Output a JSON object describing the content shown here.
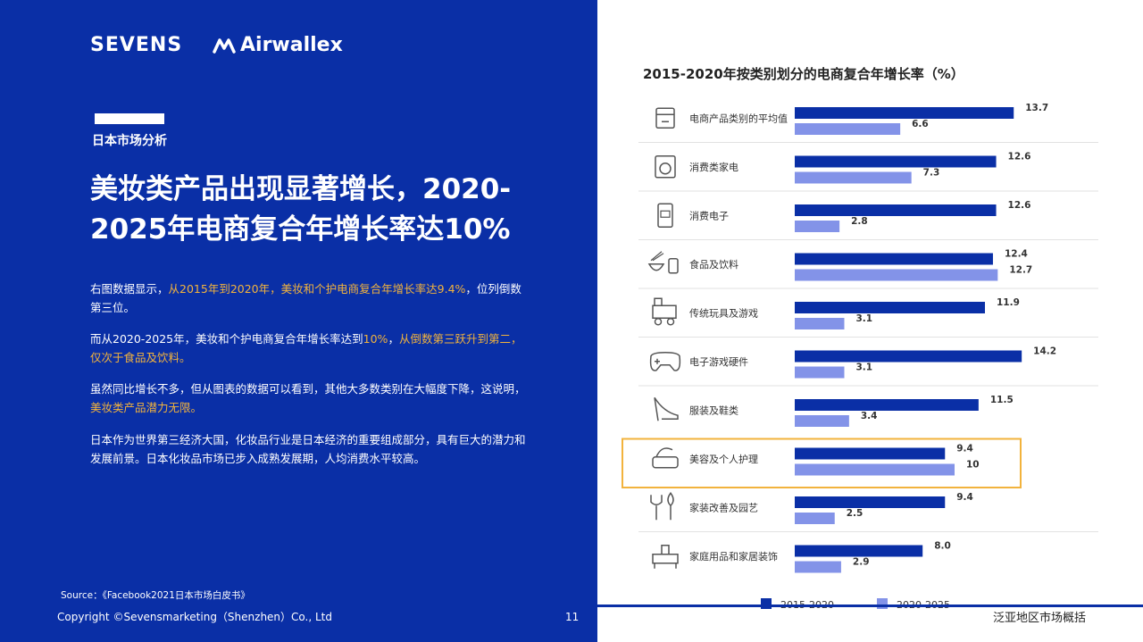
{
  "logos": {
    "brand1": "SEVENS",
    "brand2": "Airwallex"
  },
  "left": {
    "section": "日本市场分析",
    "headline_1": "美妆类产品出现显著增长，2020-",
    "headline_2": "2025年电商复合年增长率达10%",
    "p1_a": "右图数据显示，",
    "p1_b": "从2015年到2020年，美妆和个护电商复合年增长率达9.4%",
    "p1_c": "，位列倒数第三位。",
    "p2_a": "而从2020-2025年，美妆和个护电商复合年增长率达到",
    "p2_b": "10%",
    "p2_c": "，",
    "p2_d": "从倒数第三跃升到第二，仅次于食品及饮料。",
    "p3_a": "虽然同比增长不多，但从图表的数据可以看到，其他大多数类别在大幅度下降，这说明，",
    "p3_b": "美妆类产品潜力无限。",
    "p4": "日本作为世界第三经济大国，化妆品行业是日本经济的重要组成部分，具有巨大的潜力和发展前景。日本化妆品市场已步入成熟发展期，人均消费水平较高。",
    "source": "Source：《Facebook2021日本市场白皮书》",
    "copyright": "Copyright ©Sevensmarketing（Shenzhen）Co., Ltd",
    "page_number": "11"
  },
  "footer_right": "泛亚地区市场概括",
  "colors": {
    "dark_blue": "#0a2fa6",
    "light_blue": "#8393e8",
    "highlight": "#f2b33d"
  },
  "chart_data": {
    "type": "bar",
    "orientation": "horizontal",
    "title": "2015-2020年按类别划分的电商复合年增长率（%）",
    "categories": [
      "电商产品类别的平均值",
      "消费类家电",
      "消费电子",
      "食品及饮料",
      "传统玩具及游戏",
      "电子游戏硬件",
      "服装及鞋类",
      "美容及个人护理",
      "家装改善及园艺",
      "家庭用品和家居装饰"
    ],
    "icons": [
      "shop-icon",
      "washing-machine-icon",
      "phone-icon",
      "food-icon",
      "toy-train-icon",
      "gamepad-icon",
      "high-heel-icon",
      "cosmetics-icon",
      "garden-tools-icon",
      "furniture-icon"
    ],
    "series": [
      {
        "name": "2015-2020",
        "color": "#0a2fa6",
        "values": [
          13.7,
          12.6,
          12.6,
          12.4,
          11.9,
          14.2,
          11.5,
          9.4,
          9.4,
          8.0
        ]
      },
      {
        "name": "2020-2025",
        "color": "#8393e8",
        "values": [
          6.6,
          7.3,
          2.8,
          12.7,
          3.1,
          3.1,
          3.4,
          10,
          2.5,
          2.9
        ]
      }
    ],
    "value_labels": [
      [
        "13.7",
        "12.6",
        "12.6",
        "12.4",
        "11.9",
        "14.2",
        "11.5",
        "9.4",
        "9.4",
        "8.0"
      ],
      [
        "6.6",
        "7.3",
        "2.8",
        "12.7",
        "3.1",
        "3.1",
        "3.4",
        "10",
        "2.5",
        "2.9"
      ]
    ],
    "highlighted_category": "美容及个人护理",
    "legend_position": "bottom",
    "grid": false
  }
}
